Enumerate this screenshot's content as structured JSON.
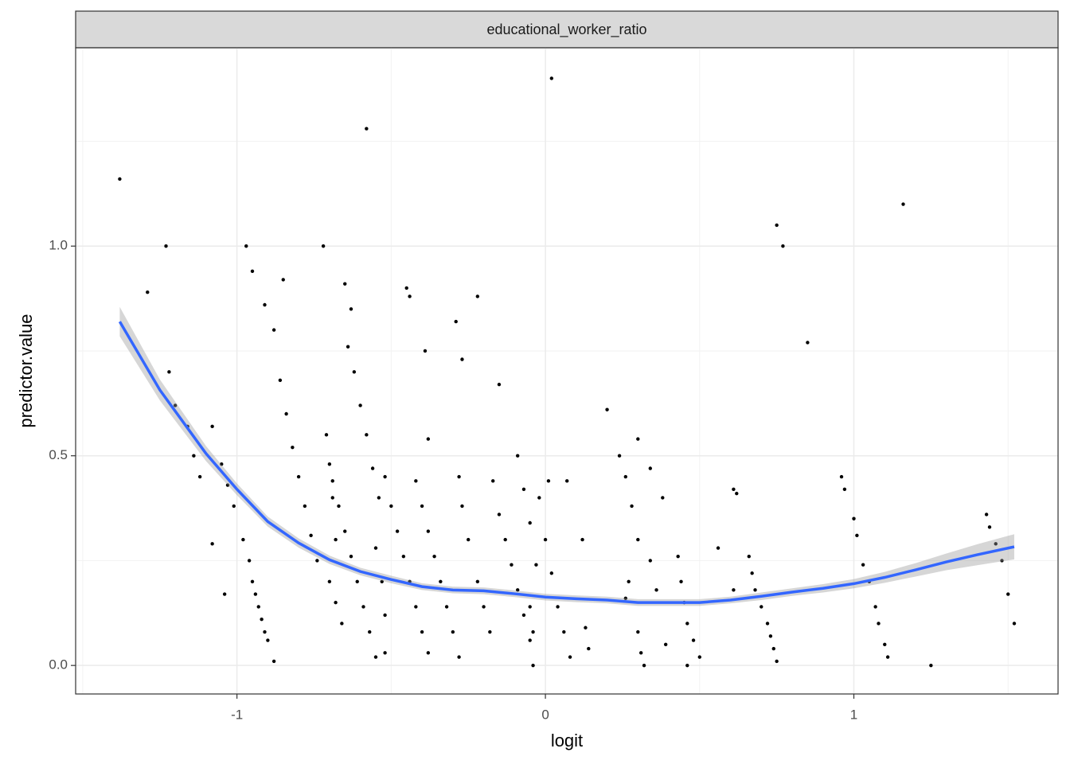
{
  "chart_data": {
    "type": "scatter",
    "strip_title": "educational_worker_ratio",
    "xlabel": "logit",
    "ylabel": "predictor.value",
    "xlim": [
      -1.523,
      1.662
    ],
    "ylim": [
      -0.068,
      1.473
    ],
    "xticks": [
      -1,
      0,
      1
    ],
    "yticks": [
      {
        "value": 0,
        "label": "0.0"
      },
      {
        "value": 0.5,
        "label": "0.5"
      },
      {
        "value": 1,
        "label": "1.0"
      }
    ],
    "x_minor_ticks": [
      -1.5,
      -0.5,
      0.5,
      1.5
    ],
    "y_minor_ticks": [
      0.25,
      0.75,
      1.25
    ],
    "grid": true,
    "point_color": "#000000",
    "x": [
      -1.38,
      0.02,
      -0.58,
      1.16,
      0.75,
      0.77,
      0.85,
      -1.29,
      -1.23,
      -0.97,
      -0.72,
      -0.95,
      -0.91,
      -0.88,
      -0.85,
      -0.65,
      -0.63,
      -0.45,
      -0.44,
      -0.39,
      -0.29,
      -0.22,
      -0.27,
      -0.15,
      0.2,
      0.3,
      -0.38,
      -1.22,
      -1.2,
      -1.16,
      -1.14,
      -1.12,
      -1.08,
      -1.05,
      -1.03,
      -1.01,
      -0.98,
      -1.04,
      -1.08,
      -0.96,
      -0.95,
      -0.94,
      -0.93,
      -0.92,
      -0.91,
      -0.9,
      -0.88,
      -0.86,
      -0.84,
      -0.82,
      -0.8,
      -0.78,
      -0.76,
      -0.74,
      -0.71,
      -0.7,
      -0.69,
      -0.68,
      -0.7,
      -0.68,
      -0.66,
      -0.69,
      -0.67,
      -0.65,
      -0.63,
      -0.61,
      -0.59,
      -0.57,
      -0.55,
      -0.64,
      -0.62,
      -0.6,
      -0.58,
      -0.56,
      -0.54,
      -0.55,
      -0.53,
      -0.52,
      -0.52,
      -0.52,
      -0.5,
      -0.48,
      -0.46,
      -0.44,
      -0.42,
      -0.4,
      -0.38,
      -0.42,
      -0.4,
      -0.38,
      -0.36,
      -0.34,
      -0.32,
      -0.3,
      -0.28,
      -0.28,
      -0.27,
      -0.25,
      -0.22,
      -0.2,
      -0.18,
      -0.17,
      -0.15,
      -0.13,
      -0.11,
      -0.09,
      -0.07,
      -0.05,
      -0.09,
      -0.07,
      -0.05,
      -0.03,
      -0.05,
      -0.04,
      -0.04,
      -0.02,
      0.0,
      0.02,
      0.04,
      0.06,
      0.08,
      0.01,
      0.07,
      0.12,
      0.13,
      0.14,
      0.24,
      0.26,
      0.28,
      0.3,
      0.27,
      0.26,
      0.3,
      0.31,
      0.32,
      0.34,
      0.38,
      0.34,
      0.36,
      0.39,
      0.43,
      0.44,
      0.45,
      0.46,
      0.48,
      0.5,
      0.46,
      0.56,
      0.61,
      0.62,
      0.61,
      0.66,
      0.67,
      0.68,
      0.7,
      0.72,
      0.73,
      0.74,
      0.75,
      0.96,
      0.97,
      1.0,
      1.01,
      1.03,
      1.05,
      1.07,
      1.08,
      1.1,
      1.11,
      1.25,
      1.43,
      1.44,
      1.46,
      1.48,
      1.5,
      1.52
    ],
    "y": [
      1.16,
      1.4,
      1.28,
      1.1,
      1.05,
      1.0,
      0.77,
      0.89,
      1.0,
      1.0,
      1.0,
      0.94,
      0.86,
      0.8,
      0.92,
      0.91,
      0.85,
      0.9,
      0.88,
      0.75,
      0.82,
      0.88,
      0.73,
      0.67,
      0.61,
      0.54,
      0.54,
      0.7,
      0.62,
      0.57,
      0.5,
      0.45,
      0.57,
      0.48,
      0.43,
      0.38,
      0.3,
      0.17,
      0.29,
      0.25,
      0.2,
      0.17,
      0.14,
      0.11,
      0.08,
      0.06,
      0.01,
      0.68,
      0.6,
      0.52,
      0.45,
      0.38,
      0.31,
      0.25,
      0.55,
      0.48,
      0.4,
      0.3,
      0.2,
      0.15,
      0.1,
      0.44,
      0.38,
      0.32,
      0.26,
      0.2,
      0.14,
      0.08,
      0.02,
      0.76,
      0.7,
      0.62,
      0.55,
      0.47,
      0.4,
      0.28,
      0.2,
      0.12,
      0.03,
      0.45,
      0.38,
      0.32,
      0.26,
      0.2,
      0.14,
      0.08,
      0.03,
      0.44,
      0.38,
      0.32,
      0.26,
      0.2,
      0.14,
      0.08,
      0.02,
      0.45,
      0.38,
      0.3,
      0.2,
      0.14,
      0.08,
      0.44,
      0.36,
      0.3,
      0.24,
      0.18,
      0.12,
      0.06,
      0.5,
      0.42,
      0.34,
      0.24,
      0.14,
      0.08,
      0.0,
      0.4,
      0.3,
      0.22,
      0.14,
      0.08,
      0.02,
      0.44,
      0.44,
      0.3,
      0.09,
      0.04,
      0.5,
      0.45,
      0.38,
      0.3,
      0.2,
      0.16,
      0.08,
      0.03,
      0.0,
      0.47,
      0.4,
      0.25,
      0.18,
      0.05,
      0.26,
      0.2,
      0.15,
      0.1,
      0.06,
      0.02,
      0.0,
      0.28,
      0.42,
      0.41,
      0.18,
      0.26,
      0.22,
      0.18,
      0.14,
      0.1,
      0.07,
      0.04,
      0.01,
      0.45,
      0.42,
      0.35,
      0.31,
      0.24,
      0.2,
      0.14,
      0.1,
      0.05,
      0.02,
      0.0,
      0.36,
      0.33,
      0.29,
      0.25,
      0.17,
      0.1
    ],
    "smooth": {
      "color": "#3366ff",
      "band_color": "#999999",
      "x": [
        -1.38,
        -1.25,
        -1.1,
        -1.0,
        -0.9,
        -0.8,
        -0.7,
        -0.6,
        -0.5,
        -0.4,
        -0.3,
        -0.2,
        -0.1,
        0,
        0.1,
        0.2,
        0.3,
        0.4,
        0.5,
        0.6,
        0.7,
        0.8,
        0.9,
        1.0,
        1.1,
        1.2,
        1.3,
        1.4,
        1.52
      ],
      "y": [
        0.82,
        0.657,
        0.505,
        0.42,
        0.343,
        0.292,
        0.252,
        0.224,
        0.205,
        0.188,
        0.18,
        0.178,
        0.171,
        0.163,
        0.159,
        0.156,
        0.15,
        0.15,
        0.15,
        0.156,
        0.165,
        0.175,
        0.184,
        0.195,
        0.21,
        0.228,
        0.247,
        0.264,
        0.283
      ],
      "lower": [
        0.785,
        0.632,
        0.487,
        0.406,
        0.331,
        0.281,
        0.242,
        0.215,
        0.196,
        0.18,
        0.172,
        0.17,
        0.163,
        0.155,
        0.151,
        0.148,
        0.142,
        0.142,
        0.142,
        0.148,
        0.156,
        0.166,
        0.174,
        0.184,
        0.197,
        0.212,
        0.227,
        0.239,
        0.253
      ],
      "upper": [
        0.855,
        0.682,
        0.523,
        0.434,
        0.355,
        0.303,
        0.262,
        0.233,
        0.214,
        0.196,
        0.188,
        0.186,
        0.179,
        0.171,
        0.167,
        0.164,
        0.158,
        0.158,
        0.158,
        0.164,
        0.174,
        0.184,
        0.194,
        0.206,
        0.223,
        0.244,
        0.267,
        0.289,
        0.313
      ]
    }
  }
}
